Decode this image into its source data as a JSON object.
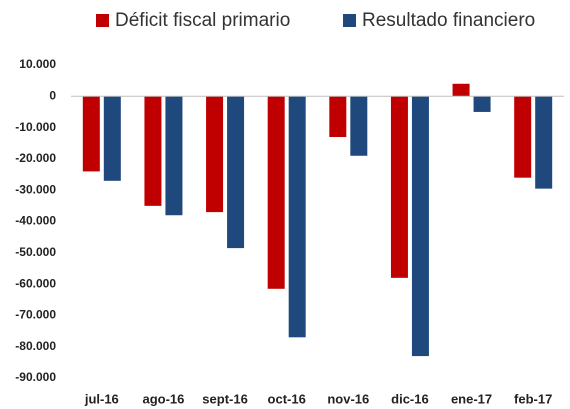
{
  "chart_data": {
    "type": "bar",
    "categories": [
      "jul-16",
      "ago-16",
      "sept-16",
      "oct-16",
      "nov-16",
      "dic-16",
      "ene-17",
      "feb-17"
    ],
    "series": [
      {
        "name": "Déficit fiscal primario",
        "color": "#c00000",
        "values": [
          -24000,
          -35000,
          -37000,
          -61500,
          -13000,
          -58000,
          4000,
          -26000
        ]
      },
      {
        "name": "Resultado financiero",
        "color": "#1f497d",
        "values": [
          -27000,
          -38000,
          -48500,
          -77000,
          -19000,
          -83000,
          -5000,
          -29500
        ]
      }
    ],
    "ylim": [
      -90000,
      10000
    ],
    "yticks": [
      {
        "value": 10000,
        "label": "10.000"
      },
      0,
      {
        "value": -10000,
        "label": "-10.000"
      },
      {
        "value": -20000,
        "label": "-20.000"
      },
      {
        "value": -30000,
        "label": "-30.000"
      },
      {
        "value": -40000,
        "label": "-40.000"
      },
      {
        "value": -50000,
        "label": "-50.000"
      },
      {
        "value": -60000,
        "label": "-60.000"
      },
      {
        "value": -70000,
        "label": "-70.000"
      },
      {
        "value": -80000,
        "label": "-80.000"
      },
      {
        "value": -90000,
        "label": "-90.000"
      }
    ],
    "grid": false,
    "legend": "top"
  }
}
